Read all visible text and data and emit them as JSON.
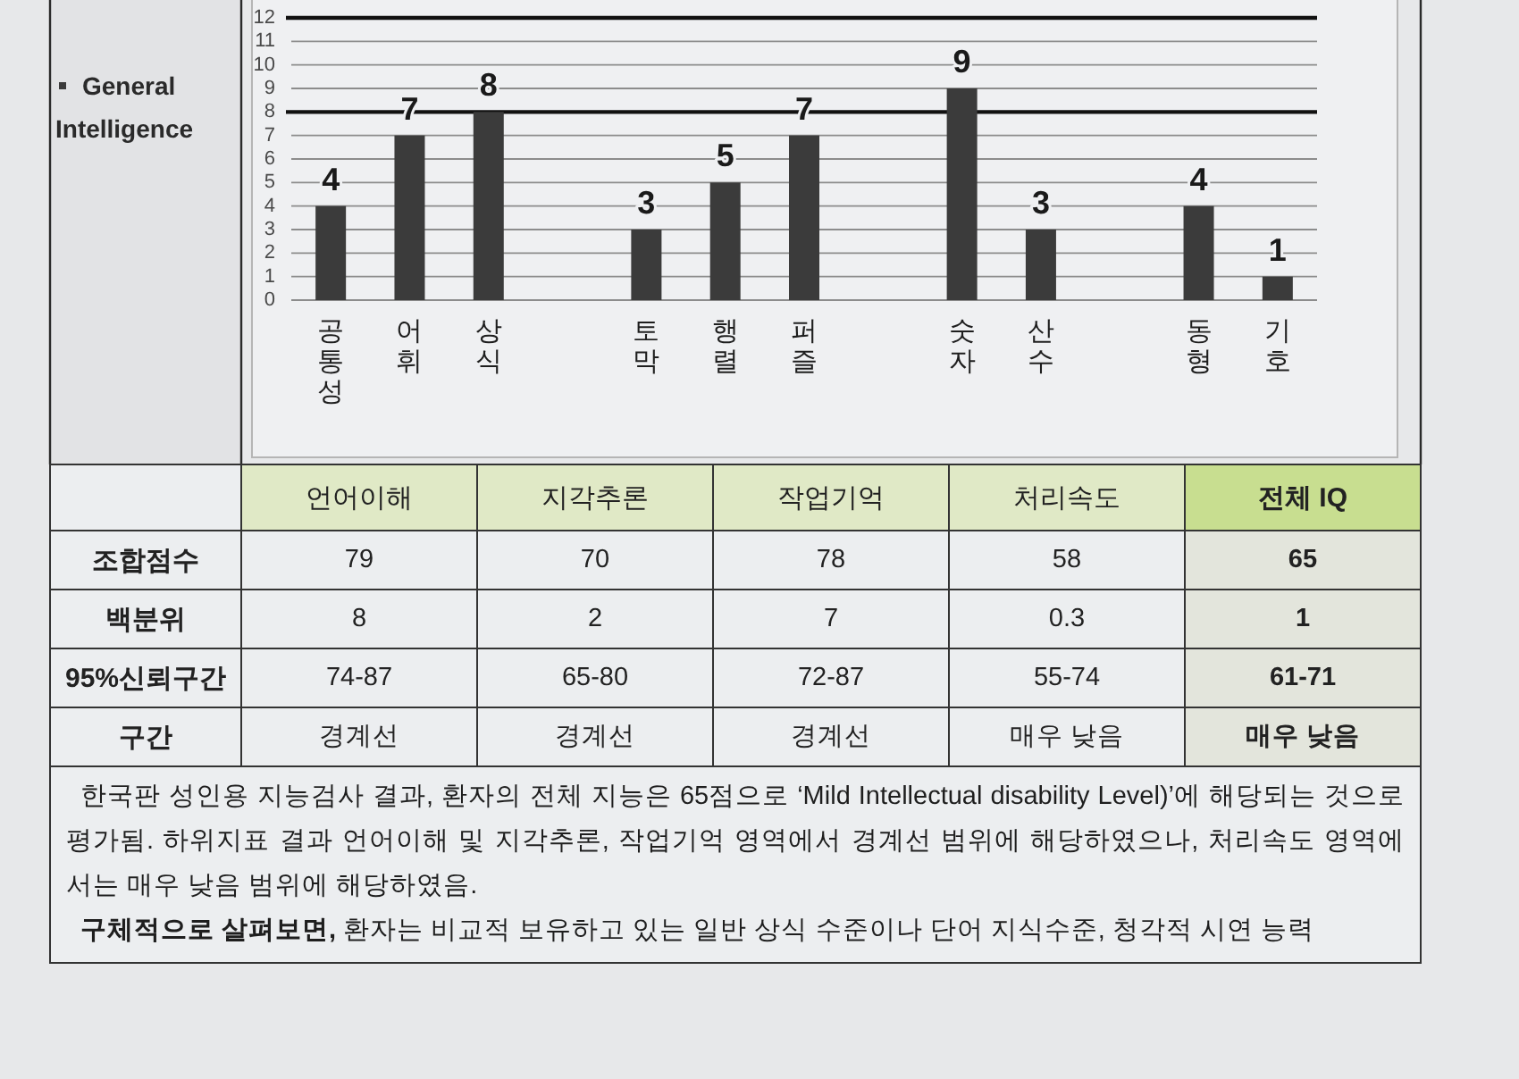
{
  "chart_data": [
    {
      "type": "bar",
      "categories": [
        "공통성",
        "어휘",
        "상식",
        null,
        "토막",
        "행렬",
        "퍼즐",
        null,
        "숫자",
        "산수",
        null,
        "동형",
        "기호"
      ],
      "series": [
        {
          "name": "General Intelligence",
          "color": "#3b3b3b",
          "values": [
            4,
            7,
            8,
            null,
            3,
            5,
            7,
            null,
            9,
            3,
            null,
            4,
            1
          ]
        }
      ],
      "ylim": [
        0,
        12
      ],
      "yticks": [
        0,
        1,
        2,
        3,
        4,
        5,
        6,
        7,
        8,
        9,
        10,
        11,
        12
      ],
      "grid": "y",
      "legend": "left",
      "data_labels": true,
      "ref_lines": [
        {
          "axis": "y",
          "value": 8,
          "color": "#111111"
        },
        {
          "axis": "y",
          "value": 12,
          "color": "#111111"
        }
      ]
    },
    {
      "type": "other",
      "categories": [
        "언어이해",
        "지각추론",
        "작업기억",
        "처리속도",
        "전체 IQ"
      ],
      "y_categories": [
        "조합점수",
        "백분위",
        "95%신뢰구간",
        "구간"
      ],
      "cell_labels": [
        [
          "79",
          "70",
          "78",
          "58",
          "65"
        ],
        [
          "8",
          "2",
          "7",
          "0.3",
          "1"
        ],
        [
          "74-87",
          "65-80",
          "72-87",
          "55-74",
          "61-71"
        ],
        [
          "경계선",
          "경계선",
          "경계선",
          "매우 낮음",
          "매우 낮음"
        ]
      ],
      "annotations": [
        "한국판 성인용 지능검사 결과, 환자의 전체 지능은 65점으로 ‘Mild Intellectual disability Level)’에 해당되는 것으로 평가됨. 하위지표 결과 언어이해 및 지각추론, 작업기억 영역에서 경계선 범위에 해당하였으나, 처리속도 영역에서는 매우 낮음 범위에 해당하였음.",
        "**구체적으로 살펴보면,** 환자는 비교적 보유하고 있는 일반 상식 수준이나 단어 지식수준, 청각적 시연 능력"
      ]
    }
  ]
}
